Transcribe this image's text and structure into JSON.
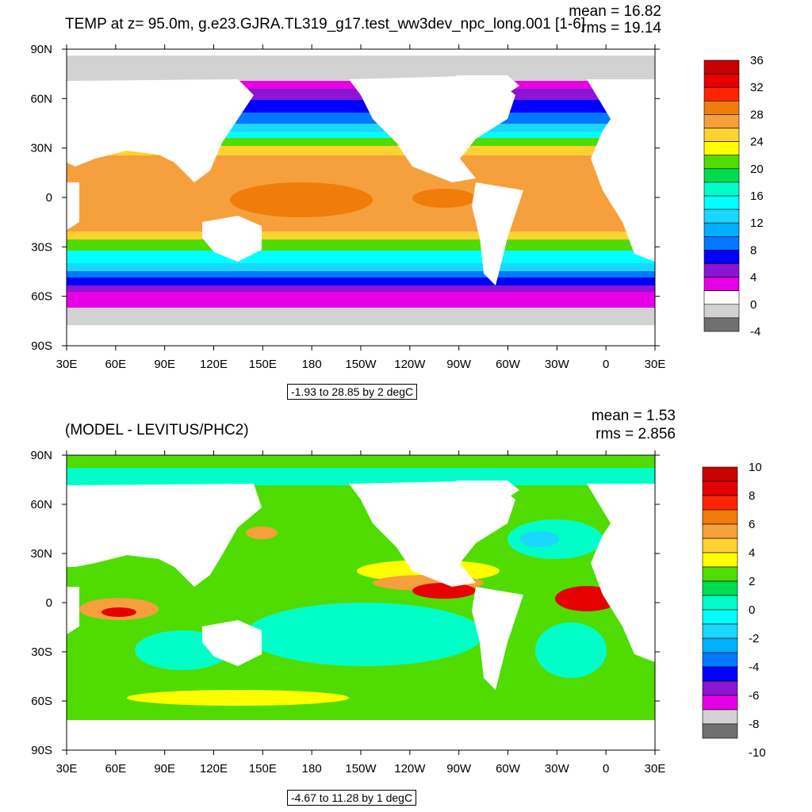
{
  "chart_data": [
    {
      "type": "heatmap",
      "title": "TEMP at z=  95.0m, g.e23.GJRA.TL319_g17.test_ww3dev_npc_long.001 [1-6]",
      "mean_label": "mean = 16.82",
      "rms_label": "rms = 19.14",
      "range_label": "-1.93 to 28.85 by 2 degC",
      "xticks": [
        "30E",
        "60E",
        "90E",
        "120E",
        "150E",
        "180",
        "150W",
        "120W",
        "90W",
        "60W",
        "30W",
        "0",
        "30E"
      ],
      "yticks": [
        "90N",
        "60N",
        "30N",
        "0",
        "30S",
        "60S",
        "90S"
      ],
      "colorbar": {
        "labels": [
          "36",
          "32",
          "28",
          "24",
          "20",
          "16",
          "12",
          "8",
          "4",
          "0",
          "-4"
        ],
        "colors": [
          "#c80000",
          "#e60000",
          "#ff2400",
          "#f07c0a",
          "#f5a03c",
          "#ffd232",
          "#ffff00",
          "#50dc00",
          "#00dc50",
          "#00ffc8",
          "#00ffff",
          "#19d7ff",
          "#00afff",
          "#0078ff",
          "#0000ff",
          "#8c14d2",
          "#e600e6",
          "#ffffff",
          "#d2d2d2",
          "#707070"
        ]
      }
    },
    {
      "type": "heatmap",
      "title": "(MODEL - LEVITUS/PHC2)",
      "mean_label": "mean = 1.53",
      "rms_label": "rms = 2.856",
      "range_label": "-4.67 to 11.28 by 1 degC",
      "xticks": [
        "30E",
        "60E",
        "90E",
        "120E",
        "150E",
        "180",
        "150W",
        "120W",
        "90W",
        "60W",
        "30W",
        "0",
        "30E"
      ],
      "yticks": [
        "90N",
        "60N",
        "30N",
        "0",
        "30S",
        "60S",
        "90S"
      ],
      "colorbar": {
        "labels": [
          "10",
          "8",
          "6",
          "4",
          "2",
          "0",
          "-2",
          "-4",
          "-6",
          "-8",
          "-10"
        ],
        "colors": [
          "#c80000",
          "#e60000",
          "#ff2400",
          "#f07c0a",
          "#f5a03c",
          "#ffd232",
          "#ffff00",
          "#50dc00",
          "#00dc50",
          "#00ffc8",
          "#00ffff",
          "#19d7ff",
          "#00afff",
          "#0078ff",
          "#0000ff",
          "#8c14d2",
          "#e600e6",
          "#d2d2d2",
          "#707070"
        ]
      }
    }
  ]
}
